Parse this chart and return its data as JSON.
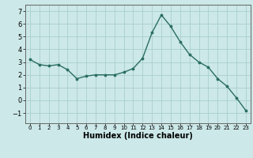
{
  "x": [
    0,
    1,
    2,
    3,
    4,
    5,
    6,
    7,
    8,
    9,
    10,
    11,
    12,
    13,
    14,
    15,
    16,
    17,
    18,
    19,
    20,
    21,
    22,
    23
  ],
  "y": [
    3.2,
    2.8,
    2.7,
    2.8,
    2.4,
    1.7,
    1.9,
    2.0,
    2.0,
    2.0,
    2.2,
    2.5,
    3.3,
    5.3,
    6.7,
    5.8,
    4.6,
    3.6,
    3.0,
    2.6,
    1.7,
    1.1,
    0.2,
    -0.8
  ],
  "xlabel": "Humidex (Indice chaleur)",
  "ylim": [
    -1.8,
    7.5
  ],
  "xlim": [
    -0.5,
    23.5
  ],
  "bg_color": "#cce8e8",
  "grid_color": "#aacece",
  "line_color": "#2a6e60",
  "marker_color": "#2a6e60",
  "yticks": [
    -1,
    0,
    1,
    2,
    3,
    4,
    5,
    6,
    7
  ],
  "xtick_labels": [
    "0",
    "1",
    "2",
    "3",
    "4",
    "5",
    "6",
    "7",
    "8",
    "9",
    "10",
    "11",
    "12",
    "13",
    "14",
    "15",
    "16",
    "17",
    "18",
    "19",
    "20",
    "21",
    "22",
    "23"
  ],
  "xlabel_fontsize": 7,
  "ytick_fontsize": 6,
  "xtick_fontsize": 5
}
